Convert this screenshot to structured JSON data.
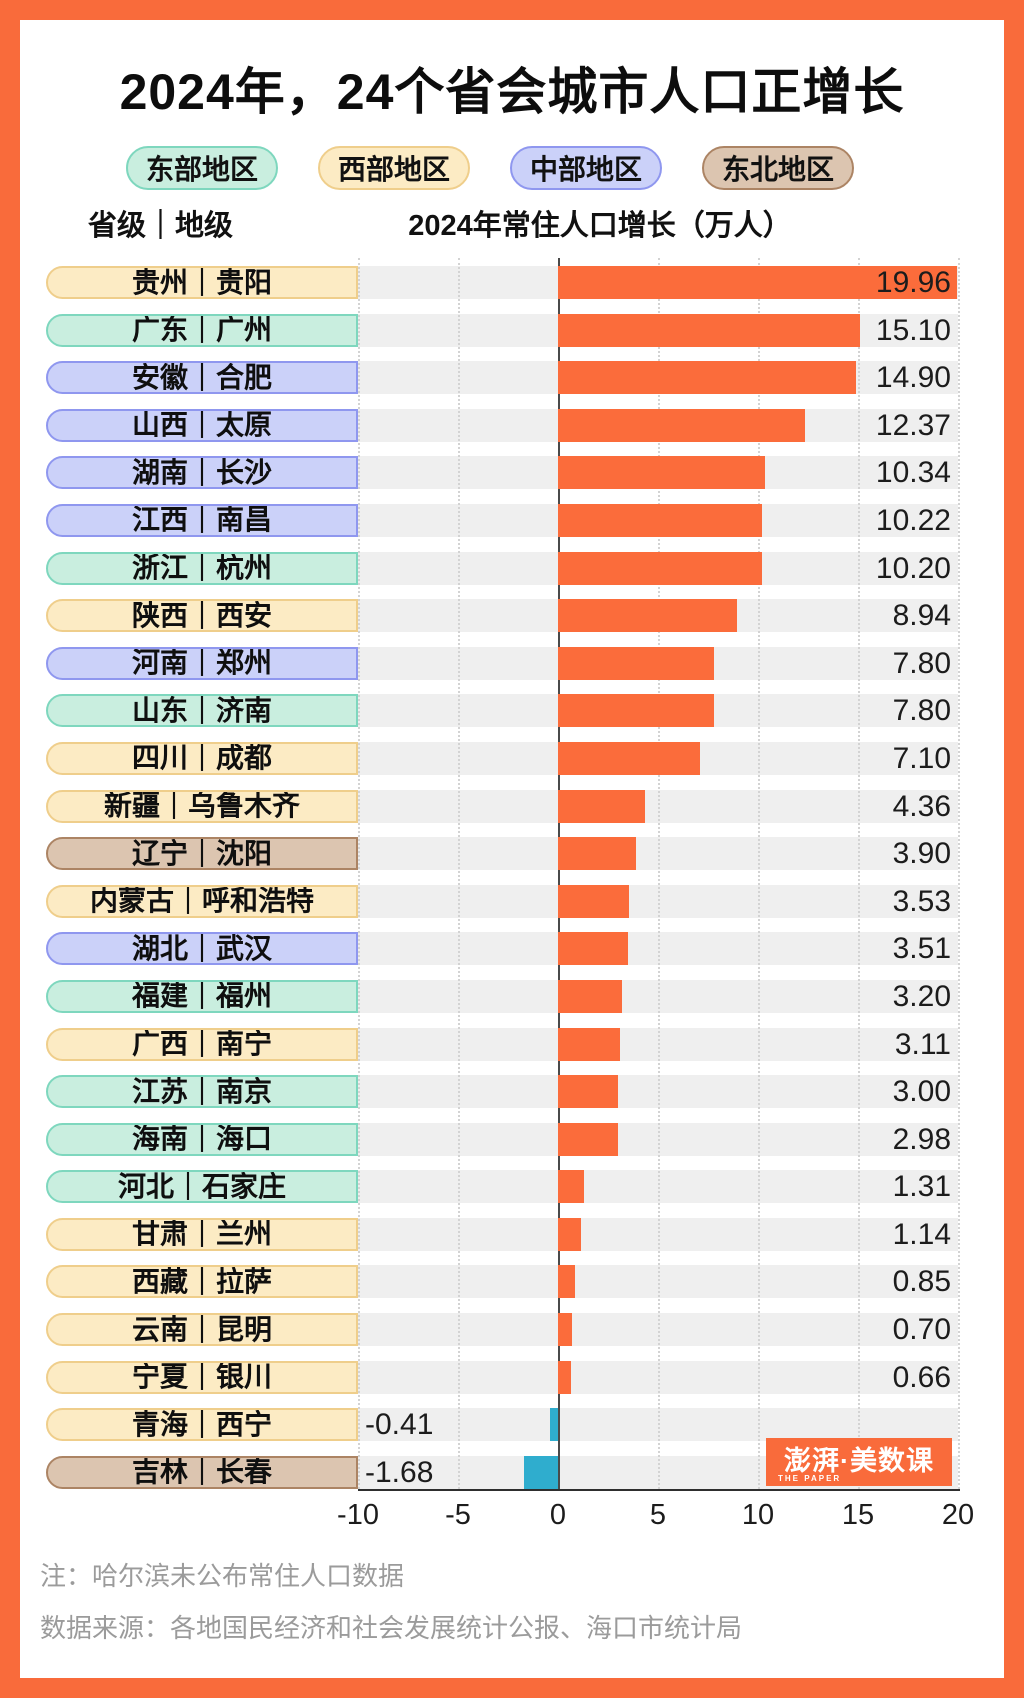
{
  "title": "2024年，24个省会城市人口正增长",
  "legend": [
    {
      "label": "东部地区",
      "region": "east"
    },
    {
      "label": "西部地区",
      "region": "west"
    },
    {
      "label": "中部地区",
      "region": "central"
    },
    {
      "label": "东北地区",
      "region": "northeast"
    }
  ],
  "columns": {
    "left": "省级｜地级",
    "right": "2024年常住人口增长（万人）"
  },
  "chart_data": {
    "type": "bar",
    "orientation": "horizontal",
    "title": "2024年常住人口增长（万人）",
    "unit": "万人",
    "xlim": [
      -10,
      20
    ],
    "x_ticks": [
      -10,
      -5,
      0,
      5,
      10,
      15,
      20
    ],
    "grid": "dotted-vertical",
    "positive_color": "#FB6C3B",
    "negative_color": "#2FADCE",
    "rows": [
      {
        "label": "贵州｜贵阳",
        "region": "west",
        "value": 19.96,
        "display": "19.96"
      },
      {
        "label": "广东｜广州",
        "region": "east",
        "value": 15.1,
        "display": "15.10"
      },
      {
        "label": "安徽｜合肥",
        "region": "central",
        "value": 14.9,
        "display": "14.90"
      },
      {
        "label": "山西｜太原",
        "region": "central",
        "value": 12.37,
        "display": "12.37"
      },
      {
        "label": "湖南｜长沙",
        "region": "central",
        "value": 10.34,
        "display": "10.34"
      },
      {
        "label": "江西｜南昌",
        "region": "central",
        "value": 10.22,
        "display": "10.22"
      },
      {
        "label": "浙江｜杭州",
        "region": "east",
        "value": 10.2,
        "display": "10.20"
      },
      {
        "label": "陕西｜西安",
        "region": "west",
        "value": 8.94,
        "display": "8.94"
      },
      {
        "label": "河南｜郑州",
        "region": "central",
        "value": 7.8,
        "display": "7.80"
      },
      {
        "label": "山东｜济南",
        "region": "east",
        "value": 7.8,
        "display": "7.80"
      },
      {
        "label": "四川｜成都",
        "region": "west",
        "value": 7.1,
        "display": "7.10"
      },
      {
        "label": "新疆｜乌鲁木齐",
        "region": "west",
        "value": 4.36,
        "display": "4.36"
      },
      {
        "label": "辽宁｜沈阳",
        "region": "northeast",
        "value": 3.9,
        "display": "3.90"
      },
      {
        "label": "内蒙古｜呼和浩特",
        "region": "west",
        "value": 3.53,
        "display": "3.53"
      },
      {
        "label": "湖北｜武汉",
        "region": "central",
        "value": 3.51,
        "display": "3.51"
      },
      {
        "label": "福建｜福州",
        "region": "east",
        "value": 3.2,
        "display": "3.20"
      },
      {
        "label": "广西｜南宁",
        "region": "west",
        "value": 3.11,
        "display": "3.11"
      },
      {
        "label": "江苏｜南京",
        "region": "east",
        "value": 3.0,
        "display": "3.00"
      },
      {
        "label": "海南｜海口",
        "region": "east",
        "value": 2.98,
        "display": "2.98"
      },
      {
        "label": "河北｜石家庄",
        "region": "east",
        "value": 1.31,
        "display": "1.31"
      },
      {
        "label": "甘肃｜兰州",
        "region": "west",
        "value": 1.14,
        "display": "1.14"
      },
      {
        "label": "西藏｜拉萨",
        "region": "west",
        "value": 0.85,
        "display": "0.85"
      },
      {
        "label": "云南｜昆明",
        "region": "west",
        "value": 0.7,
        "display": "0.70"
      },
      {
        "label": "宁夏｜银川",
        "region": "west",
        "value": 0.66,
        "display": "0.66"
      },
      {
        "label": "青海｜西宁",
        "region": "west",
        "value": -0.41,
        "display": "-0.41"
      },
      {
        "label": "吉林｜长春",
        "region": "northeast",
        "value": -1.68,
        "display": "-1.68"
      }
    ]
  },
  "region_colors": {
    "east": {
      "fill": "#C9EEDF",
      "border": "#7ED7BE"
    },
    "west": {
      "fill": "#FCEBC4",
      "border": "#EFCE8B"
    },
    "central": {
      "fill": "#CBD1F9",
      "border": "#8F97EF"
    },
    "northeast": {
      "fill": "#DCC5B0",
      "border": "#AC8464"
    },
    "band_gray": "#EFEFEF"
  },
  "frame_color": "#F96B3B",
  "logo": {
    "text": "澎湃·美数课",
    "subtext": "THE PAPER"
  },
  "notes": [
    "注：哈尔滨未公布常住人口数据",
    "数据来源：各地国民经济和社会发展统计公报、海口市统计局"
  ]
}
